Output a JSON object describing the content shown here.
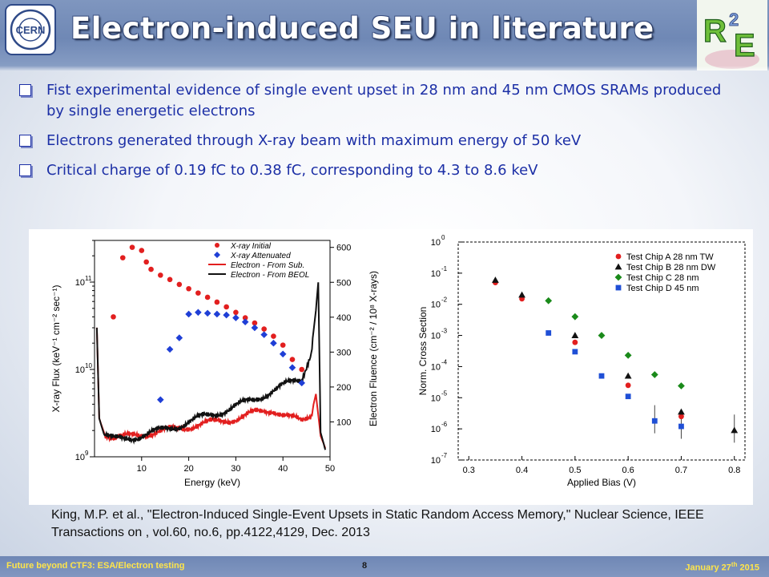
{
  "header": {
    "title": "Electron-induced SEU in literature",
    "cern_logo_text": "CERN",
    "r2e_logo_text": "R2E"
  },
  "bullets": [
    "Fist experimental evidence of single event upset in 28 nm and 45 nm CMOS SRAMs produced by single energetic electrons",
    "Electrons generated through X-ray beam with maximum energy of 50 keV",
    "Critical charge of 0.19 fC to 0.38 fC, corresponding to 4.3 to 8.6 keV"
  ],
  "citation": "King, M.P. et al., \"Electron-Induced Single-Event Upsets in Static Random Access Memory,\" Nuclear Science, IEEE Transactions on , vol.60, no.6, pp.4122,4129, Dec. 2013",
  "footer": {
    "left": "Future beyond CTF3: ESA/Electron testing",
    "page": "8",
    "date_main": "January 27",
    "date_sup": "th",
    "date_year": " 2015"
  },
  "chart_data": [
    {
      "type": "scatter",
      "xlabel": "Energy (keV)",
      "ylabel": "X-ray Flux (keV⁻¹ cm⁻² sec⁻¹)",
      "y2label": "Electron Fluence (cm⁻² / 10⁸ X-rays)",
      "xlim": [
        0,
        50
      ],
      "ylim_log": [
        1000000000.0,
        300000000000.0
      ],
      "y2lim": [
        0,
        620
      ],
      "x_ticks": [
        "10",
        "20",
        "30",
        "40",
        "50"
      ],
      "y_ticks": [
        {
          "label": "10",
          "exp": "9",
          "v": 1000000000.0
        },
        {
          "label": "10",
          "exp": "10",
          "v": 10000000000.0
        },
        {
          "label": "10",
          "exp": "11",
          "v": 100000000000.0
        }
      ],
      "y2_ticks": [
        "100",
        "200",
        "300",
        "400",
        "500",
        "600"
      ],
      "legend_position": "top-right",
      "series": [
        {
          "name": "X-ray Initial",
          "color": "#e21f1f",
          "marker": "circle",
          "x": [
            4,
            6,
            8,
            10,
            11,
            12,
            14,
            16,
            18,
            20,
            22,
            24,
            26,
            28,
            30,
            32,
            34,
            36,
            38,
            40,
            42,
            44
          ],
          "y": [
            40000000000.0,
            190000000000.0,
            250000000000.0,
            230000000000.0,
            170000000000.0,
            140000000000.0,
            120000000000.0,
            107000000000.0,
            94000000000.0,
            84000000000.0,
            75000000000.0,
            67000000000.0,
            59000000000.0,
            52000000000.0,
            45000000000.0,
            39000000000.0,
            34000000000.0,
            29000000000.0,
            24000000000.0,
            19000000000.0,
            13000000000.0,
            10000000000.0
          ]
        },
        {
          "name": "X-ray Attenuated",
          "color": "#1f3fd6",
          "marker": "diamond",
          "x": [
            14,
            16,
            18,
            20,
            22,
            24,
            26,
            28,
            30,
            32,
            34,
            36,
            38,
            40,
            42,
            44
          ],
          "y": [
            4500000000.0,
            17000000000.0,
            23000000000.0,
            43000000000.0,
            45000000000.0,
            44000000000.0,
            43000000000.0,
            42000000000.0,
            39000000000.0,
            35000000000.0,
            30000000000.0,
            25000000000.0,
            20000000000.0,
            15000000000.0,
            10500000000.0,
            7000000000.0
          ]
        },
        {
          "name": "Electron - From Sub.",
          "color": "#e21f1f",
          "marker": "line",
          "x": [
            0.5,
            1,
            2,
            4,
            6,
            8,
            10,
            14,
            18,
            22,
            26,
            30,
            34,
            38,
            42,
            44,
            46,
            47,
            48,
            49
          ],
          "y": [
            370,
            110,
            70,
            55,
            55,
            60,
            65,
            72,
            82,
            92,
            100,
            110,
            125,
            135,
            110,
            100,
            120,
            180,
            60,
            25
          ]
        },
        {
          "name": "Electron - From BEOL",
          "color": "#111111",
          "marker": "line",
          "x": [
            0.5,
            1,
            2,
            4,
            6,
            8,
            10,
            14,
            18,
            22,
            26,
            30,
            34,
            38,
            42,
            44,
            46,
            47,
            47.5,
            48,
            49
          ],
          "y": [
            370,
            110,
            65,
            50,
            50,
            55,
            62,
            75,
            90,
            110,
            125,
            145,
            165,
            190,
            215,
            225,
            300,
            420,
            500,
            70,
            20
          ]
        }
      ]
    },
    {
      "type": "scatter",
      "xlabel": "Applied Bias (V)",
      "ylabel": "Norm. Cross Section",
      "xlim": [
        0.28,
        0.82
      ],
      "ylim_log_exp": [
        -7,
        0
      ],
      "x_ticks": [
        "0.3",
        "0.4",
        "0.5",
        "0.6",
        "0.7",
        "0.8"
      ],
      "y_tick_exps": [
        "-7",
        "-6",
        "-5",
        "-4",
        "-3",
        "-2",
        "-1",
        "0"
      ],
      "legend_position": "top-right",
      "series": [
        {
          "name": "Test Chip A 28 nm TW",
          "color": "#e21f1f",
          "marker": "circle",
          "x": [
            0.35,
            0.4,
            0.5,
            0.6,
            0.7
          ],
          "y": [
            0.05,
            0.015,
            0.0006,
            2.5e-05,
            2.5e-06
          ]
        },
        {
          "name": "Test Chip B 28 nm DW",
          "color": "#111111",
          "marker": "triangle",
          "x": [
            0.35,
            0.4,
            0.5,
            0.6,
            0.7,
            0.8
          ],
          "y": [
            0.06,
            0.02,
            0.001,
            5e-05,
            3.5e-06,
            9e-07
          ]
        },
        {
          "name": "Test Chip C 28 nm",
          "color": "#1a8a1a",
          "marker": "diamond",
          "x": [
            0.45,
            0.5,
            0.55,
            0.6,
            0.65,
            0.7
          ],
          "y": [
            0.013,
            0.004,
            0.001,
            0.00023,
            5.5e-05,
            2.4e-05
          ]
        },
        {
          "name": "Test Chip D 45 nm",
          "color": "#1f4fd6",
          "marker": "square",
          "x": [
            0.45,
            0.5,
            0.55,
            0.6,
            0.65,
            0.7
          ],
          "y": [
            0.0012,
            0.0003,
            5e-05,
            1.1e-05,
            1.8e-06,
            1.2e-06
          ]
        }
      ]
    }
  ]
}
